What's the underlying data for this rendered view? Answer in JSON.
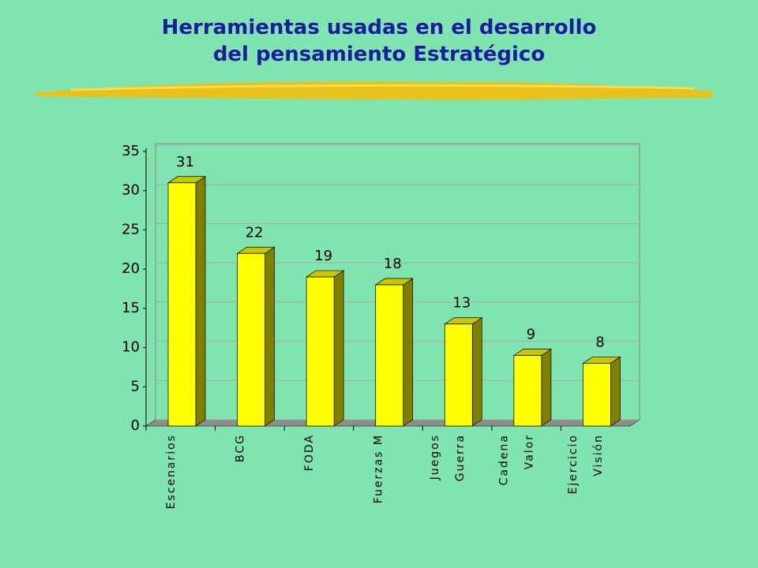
{
  "chart_data": {
    "type": "bar3d",
    "title": "Herramientas usadas en el desarrollo\ndel pensamiento Estratégico",
    "categories": [
      [
        "Escenarios"
      ],
      [
        "BCG"
      ],
      [
        "FODA"
      ],
      [
        "Fuerzas M"
      ],
      [
        "Juegos",
        "Guerra"
      ],
      [
        "Cadena",
        "Valor"
      ],
      [
        "Ejercicio",
        "Visión"
      ]
    ],
    "values": [
      31,
      22,
      19,
      18,
      13,
      9,
      8
    ],
    "color": "#ffff00",
    "ylim": [
      0,
      35
    ],
    "yticks": [
      0,
      5,
      10,
      15,
      20,
      25,
      30,
      35
    ],
    "grid": true
  }
}
